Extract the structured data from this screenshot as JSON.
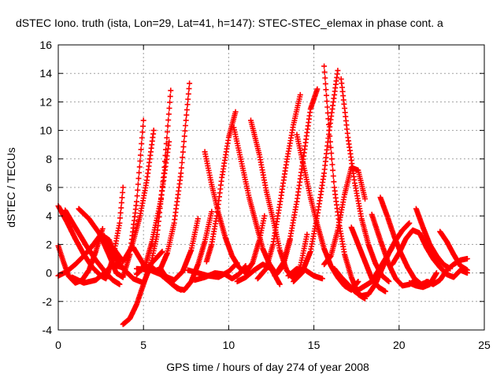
{
  "chart_data": {
    "type": "scatter",
    "title": "dSTEC Iono. truth (ista, Lon=29, Lat=41, h=147): STEC-STEC_elemax in phase cont. a",
    "xlabel": "GPS time / hours of day 274 of year 2008",
    "ylabel": "dSTEC  / TECUs",
    "xlim": [
      0,
      25
    ],
    "ylim": [
      -4,
      16
    ],
    "x_ticks": [
      0,
      5,
      10,
      15,
      20,
      25
    ],
    "y_ticks": [
      -4,
      -2,
      0,
      2,
      4,
      6,
      8,
      10,
      12,
      14,
      16
    ],
    "x_tick_labels": [
      "0",
      "5",
      "10",
      "15",
      "20",
      "25"
    ],
    "y_tick_labels": [
      "-4",
      "-2",
      "0",
      "2",
      "4",
      "6",
      "8",
      "10",
      "12",
      "14",
      "16"
    ],
    "grid": true,
    "marker": "+",
    "series_color": "#ff0000",
    "series": [
      {
        "x": [
          0.0,
          0.5,
          1.0,
          1.5,
          2.0,
          2.5,
          2.8,
          3.2,
          3.6,
          3.8
        ],
        "y": [
          4.7,
          3.6,
          2.4,
          1.3,
          0.4,
          -0.2,
          -0.4,
          1.0,
          3.5,
          6.0
        ]
      },
      {
        "x": [
          0.0,
          0.3,
          0.6,
          1.0,
          1.4,
          1.8,
          2.2,
          2.6
        ],
        "y": [
          1.9,
          0.8,
          -0.2,
          -0.7,
          -0.5,
          0.2,
          1.5,
          3.1
        ]
      },
      {
        "x": [
          0.0,
          0.5,
          1.0,
          1.5,
          2.0,
          2.5,
          3.0,
          3.5
        ],
        "y": [
          -0.2,
          0.1,
          0.6,
          1.2,
          1.9,
          2.7,
          2.3,
          0.5
        ]
      },
      {
        "x": [
          0.4,
          1.0,
          1.6,
          2.2,
          2.8,
          3.2,
          3.6
        ],
        "y": [
          4.4,
          3.2,
          2.0,
          0.9,
          0.0,
          -0.5,
          -0.8
        ]
      },
      {
        "x": [
          1.2,
          1.8,
          2.4,
          3.0,
          3.4,
          3.8,
          4.2,
          4.6,
          5.0
        ],
        "y": [
          4.5,
          3.8,
          2.8,
          1.2,
          0.0,
          -0.3,
          1.3,
          5.0,
          10.7
        ]
      },
      {
        "x": [
          0.8,
          1.5,
          2.2,
          2.8,
          3.2,
          3.7
        ],
        "y": [
          -0.3,
          -0.7,
          -0.5,
          0.1,
          0.6,
          0.4
        ]
      },
      {
        "x": [
          3.8,
          4.2,
          4.6,
          5.0,
          5.4,
          5.8,
          6.1
        ],
        "y": [
          -3.6,
          -3.2,
          -2.2,
          -0.8,
          0.6,
          1.1,
          1.5
        ]
      },
      {
        "x": [
          2.7,
          3.2,
          3.8,
          4.4,
          5.0,
          5.4,
          5.8,
          6.2,
          6.6
        ],
        "y": [
          2.6,
          1.3,
          0.3,
          -0.4,
          -0.7,
          0.4,
          2.7,
          7.0,
          12.8
        ]
      },
      {
        "x": [
          3.2,
          3.8,
          4.3,
          4.8,
          5.2,
          5.6
        ],
        "y": [
          1.8,
          0.8,
          1.8,
          4.0,
          6.5,
          10.0
        ]
      },
      {
        "x": [
          4.4,
          5.0,
          5.6,
          6.0,
          6.4,
          6.8,
          7.2,
          7.7
        ],
        "y": [
          1.8,
          0.6,
          0.1,
          0.3,
          1.4,
          3.5,
          7.0,
          13.3
        ]
      },
      {
        "x": [
          4.6,
          5.1,
          5.5,
          6.0,
          6.5
        ],
        "y": [
          -0.1,
          0.5,
          2.2,
          5.0,
          9.2
        ]
      },
      {
        "x": [
          4.6,
          5.4,
          6.2,
          6.8,
          7.3,
          7.8,
          8.2
        ],
        "y": [
          0.3,
          0.2,
          -0.2,
          -0.5,
          0.1,
          1.6,
          3.8
        ]
      },
      {
        "x": [
          5.0,
          5.6,
          6.2,
          6.8,
          7.2
        ],
        "y": [
          0.5,
          0.3,
          -0.3,
          -0.9,
          -1.2
        ]
      },
      {
        "x": [
          6.0,
          6.5,
          7.0,
          7.4,
          7.8,
          8.2,
          8.6,
          9.0
        ],
        "y": [
          0.3,
          -0.6,
          -1.1,
          -1.2,
          -0.6,
          0.6,
          2.2,
          4.3
        ]
      },
      {
        "x": [
          8.6,
          9.0,
          9.4,
          9.8,
          10.2,
          10.6,
          11.0,
          11.4,
          11.8,
          12.1
        ],
        "y": [
          8.5,
          6.2,
          4.2,
          2.5,
          1.2,
          0.4,
          0.0,
          0.7,
          2.3,
          4.0
        ]
      },
      {
        "x": [
          8.7,
          9.0,
          9.3,
          9.6,
          10.0,
          10.4
        ],
        "y": [
          0.8,
          2.0,
          4.0,
          6.7,
          9.5,
          11.3
        ]
      },
      {
        "x": [
          7.6,
          8.2,
          8.8,
          9.4,
          10.0,
          10.5
        ],
        "y": [
          0.2,
          0.0,
          -0.2,
          -0.3,
          0.1,
          0.7
        ]
      },
      {
        "x": [
          8.0,
          8.6,
          9.2,
          9.8,
          10.2,
          10.6,
          11.0
        ],
        "y": [
          -0.5,
          -0.3,
          0.0,
          -0.1,
          -0.4,
          -0.1,
          0.5
        ]
      },
      {
        "x": [
          10.3,
          10.8,
          11.2,
          11.6,
          12.0,
          12.4,
          12.8,
          13.2,
          13.6
        ],
        "y": [
          10.2,
          7.5,
          5.3,
          3.5,
          1.7,
          0.6,
          -0.1,
          0.5,
          2.3
        ]
      },
      {
        "x": [
          11.3,
          11.8,
          12.2,
          12.6,
          13.0,
          13.4,
          13.8,
          14.2,
          14.6
        ],
        "y": [
          10.7,
          8.3,
          5.8,
          3.8,
          1.6,
          0.2,
          -0.4,
          0.4,
          2.7
        ]
      },
      {
        "x": [
          10.5,
          11.0,
          11.5,
          12.0,
          12.5,
          13.0
        ],
        "y": [
          -0.6,
          -0.3,
          0.2,
          0.6,
          0.3,
          -0.8
        ]
      },
      {
        "x": [
          11.7,
          12.2,
          12.6,
          13.0,
          13.4,
          13.8,
          14.2
        ],
        "y": [
          -0.4,
          0.3,
          2.0,
          4.8,
          7.8,
          10.4,
          12.5
        ]
      },
      {
        "x": [
          12.7,
          13.2,
          13.6,
          14.0,
          14.4,
          14.8,
          15.2
        ],
        "y": [
          -0.2,
          0.7,
          2.4,
          5.0,
          8.2,
          11.5,
          12.9
        ]
      },
      {
        "x": [
          14.0,
          14.4,
          14.8,
          15.2,
          15.6,
          16.0,
          16.4,
          16.8,
          17.2,
          17.6
        ],
        "y": [
          9.7,
          7.5,
          5.3,
          3.4,
          1.7,
          0.5,
          -0.3,
          -0.9,
          -1.2,
          -0.6
        ]
      },
      {
        "x": [
          15.6,
          15.9,
          16.2,
          16.5,
          16.8,
          17.2,
          17.6,
          18.0
        ],
        "y": [
          14.5,
          10.0,
          6.0,
          3.3,
          1.3,
          -0.3,
          -1.5,
          -1.8
        ]
      },
      {
        "x": [
          13.8,
          14.3,
          14.8,
          15.2,
          15.6,
          15.9,
          16.2,
          16.4
        ],
        "y": [
          -0.6,
          0.0,
          1.5,
          4.0,
          7.0,
          10.0,
          12.5,
          14.2
        ]
      },
      {
        "x": [
          13.5,
          14.0,
          14.5,
          15.0,
          15.5
        ],
        "y": [
          -0.2,
          0.3,
          0.2,
          -0.2,
          -0.4
        ]
      },
      {
        "x": [
          16.6,
          17.0,
          17.4,
          17.8,
          18.2,
          18.6,
          19.0,
          19.4
        ],
        "y": [
          13.6,
          9.5,
          6.3,
          3.8,
          2.0,
          0.7,
          -0.2,
          -0.6
        ]
      },
      {
        "x": [
          15.6,
          16.0,
          16.4,
          16.8,
          17.2,
          17.6,
          18.0
        ],
        "y": [
          0.6,
          1.2,
          3.0,
          5.5,
          7.4,
          7.2,
          5.2
        ]
      },
      {
        "x": [
          16.2,
          16.6,
          17.0,
          17.4,
          17.8,
          18.2,
          18.6,
          19.0,
          19.4,
          19.8,
          20.2,
          20.6
        ],
        "y": [
          0.3,
          -0.3,
          -0.8,
          -1.3,
          -1.6,
          -1.5,
          -0.8,
          0.3,
          1.4,
          2.3,
          3.0,
          3.5
        ]
      },
      {
        "x": [
          17.2,
          17.6,
          18.0,
          18.4,
          18.8,
          19.2
        ],
        "y": [
          3.2,
          2.0,
          0.8,
          -0.4,
          -1.0,
          -1.3
        ]
      },
      {
        "x": [
          18.4,
          18.9,
          19.4,
          19.8,
          20.2,
          20.6,
          21.0
        ],
        "y": [
          4.1,
          2.3,
          0.6,
          -0.4,
          -0.9,
          -0.8,
          -0.5
        ]
      },
      {
        "x": [
          18.9,
          19.3,
          19.7,
          20.1,
          20.5,
          20.9,
          21.3,
          21.7
        ],
        "y": [
          5.3,
          4.0,
          2.6,
          1.4,
          0.4,
          -0.4,
          -0.8,
          -0.6
        ]
      },
      {
        "x": [
          17.6,
          18.0,
          18.4,
          18.8,
          19.2,
          19.6
        ],
        "y": [
          -1.2,
          -0.9,
          -0.6,
          0.2,
          1.0,
          1.8
        ]
      },
      {
        "x": [
          19.6,
          20.0,
          20.4,
          20.8,
          21.2,
          21.6,
          22.0,
          22.4,
          22.8,
          23.2,
          23.6,
          24.0
        ],
        "y": [
          0.6,
          1.4,
          2.4,
          3.0,
          2.8,
          1.8,
          1.0,
          0.4,
          -0.1,
          -0.3,
          0.2,
          0.0
        ]
      },
      {
        "x": [
          21.0,
          21.4,
          21.8,
          22.2,
          22.6,
          23.0
        ],
        "y": [
          4.5,
          3.2,
          2.0,
          1.2,
          0.6,
          0.3
        ]
      },
      {
        "x": [
          22.4,
          22.8,
          23.2,
          23.6,
          24.0
        ],
        "y": [
          2.9,
          2.2,
          1.3,
          0.5,
          0.2
        ]
      },
      {
        "x": [
          21.6,
          22.0,
          22.4,
          22.8,
          23.2,
          23.6,
          24.0
        ],
        "y": [
          -0.6,
          -0.8,
          -0.5,
          0.2,
          0.6,
          0.9,
          1.0
        ]
      },
      {
        "x": [
          20.6,
          21.0,
          21.4,
          21.8,
          22.2
        ],
        "y": [
          -0.7,
          -0.9,
          -1.0,
          -0.8,
          0.0
        ]
      }
    ]
  }
}
